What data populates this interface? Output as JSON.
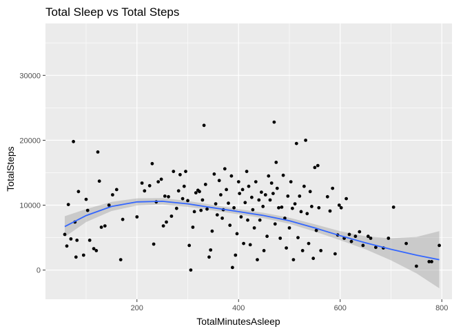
{
  "chart_data": {
    "type": "scatter",
    "title": "Total Sleep vs Total Steps",
    "xlabel": "TotalMinutesAsleep",
    "ylabel": "TotalSteps",
    "xlim": [
      20,
      820
    ],
    "ylim": [
      -4500,
      38000
    ],
    "x_ticks": [
      200,
      400,
      600,
      800
    ],
    "y_ticks": [
      0,
      10000,
      20000,
      30000
    ],
    "x_minor": [
      100,
      300,
      500,
      700
    ],
    "y_minor": [
      5000,
      15000,
      25000,
      35000
    ],
    "grid": true,
    "point_color": "#000000",
    "smooth_color": "#3366FF",
    "band_color": "#999999",
    "panel_color": "#EBEBEB",
    "points": [
      [
        58,
        5500
      ],
      [
        62,
        3700
      ],
      [
        65,
        10100
      ],
      [
        70,
        4800
      ],
      [
        75,
        19800
      ],
      [
        78,
        7400
      ],
      [
        80,
        2000
      ],
      [
        82,
        4600
      ],
      [
        85,
        12100
      ],
      [
        95,
        2300
      ],
      [
        100,
        10900
      ],
      [
        103,
        9200
      ],
      [
        107,
        4600
      ],
      [
        115,
        3300
      ],
      [
        120,
        3000
      ],
      [
        123,
        18200
      ],
      [
        126,
        13700
      ],
      [
        130,
        6600
      ],
      [
        137,
        6800
      ],
      [
        145,
        10000
      ],
      [
        152,
        11600
      ],
      [
        160,
        12400
      ],
      [
        168,
        1600
      ],
      [
        172,
        7800
      ],
      [
        200,
        8200
      ],
      [
        210,
        13400
      ],
      [
        215,
        12200
      ],
      [
        225,
        13000
      ],
      [
        230,
        16400
      ],
      [
        233,
        4000
      ],
      [
        238,
        10500
      ],
      [
        242,
        13600
      ],
      [
        248,
        14000
      ],
      [
        252,
        6800
      ],
      [
        255,
        11400
      ],
      [
        258,
        7400
      ],
      [
        262,
        11300
      ],
      [
        268,
        8300
      ],
      [
        272,
        15200
      ],
      [
        278,
        9500
      ],
      [
        282,
        12200
      ],
      [
        285,
        14700
      ],
      [
        290,
        11000
      ],
      [
        293,
        12900
      ],
      [
        296,
        15200
      ],
      [
        300,
        10700
      ],
      [
        303,
        3800
      ],
      [
        306,
        0
      ],
      [
        310,
        6600
      ],
      [
        313,
        9000
      ],
      [
        316,
        11900
      ],
      [
        320,
        12300
      ],
      [
        323,
        12100
      ],
      [
        326,
        9200
      ],
      [
        329,
        10800
      ],
      [
        332,
        22300
      ],
      [
        335,
        13200
      ],
      [
        338,
        9400
      ],
      [
        342,
        2000
      ],
      [
        345,
        3100
      ],
      [
        348,
        6000
      ],
      [
        352,
        14800
      ],
      [
        355,
        10200
      ],
      [
        358,
        8500
      ],
      [
        362,
        13800
      ],
      [
        365,
        11600
      ],
      [
        368,
        8000
      ],
      [
        370,
        9300
      ],
      [
        373,
        15600
      ],
      [
        376,
        12400
      ],
      [
        380,
        10300
      ],
      [
        383,
        6900
      ],
      [
        386,
        14500
      ],
      [
        388,
        400
      ],
      [
        391,
        9600
      ],
      [
        394,
        2300
      ],
      [
        397,
        5600
      ],
      [
        400,
        13600
      ],
      [
        402,
        11800
      ],
      [
        405,
        8200
      ],
      [
        408,
        12400
      ],
      [
        410,
        4100
      ],
      [
        413,
        10400
      ],
      [
        416,
        15200
      ],
      [
        418,
        7700
      ],
      [
        420,
        12900
      ],
      [
        423,
        3900
      ],
      [
        426,
        11200
      ],
      [
        428,
        9300
      ],
      [
        431,
        6500
      ],
      [
        434,
        13600
      ],
      [
        437,
        1600
      ],
      [
        440,
        10800
      ],
      [
        442,
        7700
      ],
      [
        445,
        12000
      ],
      [
        448,
        9800
      ],
      [
        450,
        3000
      ],
      [
        453,
        11600
      ],
      [
        456,
        5200
      ],
      [
        459,
        14500
      ],
      [
        462,
        10800
      ],
      [
        465,
        13400
      ],
      [
        468,
        11800
      ],
      [
        470,
        22800
      ],
      [
        472,
        7100
      ],
      [
        474,
        16600
      ],
      [
        476,
        12600
      ],
      [
        479,
        9600
      ],
      [
        482,
        4900
      ],
      [
        485,
        9700
      ],
      [
        488,
        14600
      ],
      [
        491,
        8000
      ],
      [
        494,
        3400
      ],
      [
        497,
        11400
      ],
      [
        500,
        6500
      ],
      [
        503,
        13600
      ],
      [
        506,
        9500
      ],
      [
        508,
        1600
      ],
      [
        511,
        10200
      ],
      [
        514,
        19500
      ],
      [
        517,
        5000
      ],
      [
        520,
        11400
      ],
      [
        523,
        9000
      ],
      [
        526,
        3000
      ],
      [
        529,
        12900
      ],
      [
        532,
        20000
      ],
      [
        535,
        8700
      ],
      [
        538,
        4100
      ],
      [
        541,
        12100
      ],
      [
        544,
        9800
      ],
      [
        547,
        1800
      ],
      [
        550,
        15800
      ],
      [
        553,
        6100
      ],
      [
        556,
        16100
      ],
      [
        558,
        9600
      ],
      [
        562,
        3000
      ],
      [
        575,
        11300
      ],
      [
        580,
        9100
      ],
      [
        585,
        12600
      ],
      [
        590,
        2500
      ],
      [
        595,
        5400
      ],
      [
        598,
        10000
      ],
      [
        602,
        9600
      ],
      [
        608,
        4900
      ],
      [
        612,
        11000
      ],
      [
        618,
        5500
      ],
      [
        622,
        4400
      ],
      [
        630,
        5200
      ],
      [
        638,
        5900
      ],
      [
        645,
        3800
      ],
      [
        655,
        5200
      ],
      [
        660,
        4900
      ],
      [
        670,
        3500
      ],
      [
        685,
        3400
      ],
      [
        695,
        4900
      ],
      [
        705,
        9700
      ],
      [
        730,
        4100
      ],
      [
        750,
        600
      ],
      [
        775,
        1300
      ],
      [
        780,
        1300
      ],
      [
        795,
        3800
      ]
    ],
    "smooth_fit": [
      [
        58,
        6700
      ],
      [
        100,
        8400
      ],
      [
        150,
        9800
      ],
      [
        200,
        10500
      ],
      [
        250,
        10600
      ],
      [
        300,
        10200
      ],
      [
        350,
        9600
      ],
      [
        400,
        9000
      ],
      [
        450,
        8400
      ],
      [
        500,
        7600
      ],
      [
        550,
        6500
      ],
      [
        600,
        5300
      ],
      [
        650,
        4200
      ],
      [
        700,
        3200
      ],
      [
        750,
        2300
      ],
      [
        795,
        1600
      ]
    ],
    "band_halfwidth": [
      [
        58,
        1600
      ],
      [
        100,
        1000
      ],
      [
        150,
        700
      ],
      [
        200,
        550
      ],
      [
        250,
        500
      ],
      [
        300,
        450
      ],
      [
        350,
        420
      ],
      [
        400,
        400
      ],
      [
        450,
        420
      ],
      [
        500,
        470
      ],
      [
        550,
        560
      ],
      [
        600,
        700
      ],
      [
        650,
        1000
      ],
      [
        700,
        1700
      ],
      [
        750,
        2800
      ],
      [
        795,
        4400
      ]
    ]
  }
}
